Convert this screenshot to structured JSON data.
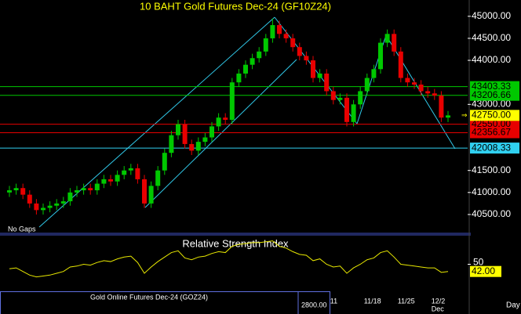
{
  "chart_data": [
    {
      "type": "candlestick",
      "title": "10 BAHT Gold Futures Dec-24 (GF10Z24)",
      "categories": [
        null,
        null,
        null,
        null,
        null,
        null,
        null,
        null,
        null,
        null,
        null,
        null,
        null,
        null,
        null,
        null,
        null,
        null,
        null,
        null,
        null,
        null,
        null,
        null,
        null,
        null,
        null,
        null,
        null,
        null,
        null,
        null,
        null,
        null,
        null,
        null,
        null,
        null,
        null,
        null,
        null,
        null,
        null,
        null,
        null,
        null,
        null,
        null,
        "11",
        null,
        null,
        null,
        null,
        "11/18",
        null,
        null,
        null,
        null,
        "11/25",
        null,
        null,
        null,
        null,
        "12/2",
        null,
        null
      ],
      "month_label": "Dec",
      "open": [
        41000,
        41050,
        41100,
        40950,
        40750,
        40600,
        40650,
        40700,
        40750,
        40800,
        41000,
        41050,
        41100,
        41050,
        41200,
        41300,
        41250,
        41400,
        41500,
        41550,
        41300,
        40750,
        41150,
        41500,
        41900,
        42300,
        42550,
        42100,
        41950,
        42150,
        42250,
        42500,
        42700,
        42650,
        43500,
        43700,
        43900,
        44050,
        44200,
        44500,
        44800,
        44600,
        44500,
        44300,
        44100,
        44000,
        43600,
        43700,
        43300,
        43100,
        43150,
        42600,
        43000,
        43300,
        43600,
        43800,
        44400,
        44600,
        44200,
        43600,
        43500,
        43450,
        43300,
        43250,
        43200,
        42700
      ],
      "high": [
        41150,
        41200,
        41200,
        41050,
        40850,
        40750,
        40800,
        40850,
        40900,
        41100,
        41150,
        41200,
        41200,
        41300,
        41400,
        41400,
        41500,
        41600,
        41650,
        41650,
        41400,
        41250,
        41600,
        42000,
        42400,
        42650,
        42650,
        42200,
        42250,
        42350,
        42600,
        42800,
        42800,
        43600,
        43800,
        44000,
        44150,
        44300,
        44600,
        44950,
        44900,
        44700,
        44600,
        44400,
        44200,
        44100,
        43800,
        43800,
        43400,
        43250,
        43250,
        43100,
        43400,
        43700,
        43900,
        44500,
        44700,
        44700,
        44300,
        43700,
        43600,
        43550,
        43400,
        43350,
        43300,
        42850
      ],
      "low": [
        40900,
        40950,
        40850,
        40650,
        40500,
        40500,
        40550,
        40600,
        40650,
        40700,
        40900,
        40950,
        40950,
        40950,
        41100,
        41150,
        41150,
        41300,
        41400,
        41200,
        40650,
        40650,
        41050,
        41400,
        41800,
        42200,
        42000,
        41850,
        41850,
        42050,
        42150,
        42400,
        42550,
        42550,
        43400,
        43600,
        43800,
        43950,
        44100,
        44400,
        44500,
        44400,
        44200,
        44000,
        43900,
        43500,
        43500,
        43200,
        43000,
        43000,
        42500,
        42500,
        42900,
        43200,
        43500,
        43700,
        44300,
        44100,
        43500,
        43400,
        43350,
        43200,
        43150,
        43100,
        42600,
        42600
      ],
      "close": [
        41050,
        41100,
        40950,
        40750,
        40600,
        40650,
        40700,
        40750,
        40800,
        41000,
        41050,
        41100,
        41050,
        41200,
        41300,
        41250,
        41400,
        41500,
        41550,
        41300,
        40750,
        41150,
        41500,
        41900,
        42300,
        42550,
        42100,
        41950,
        42150,
        42250,
        42500,
        42700,
        42650,
        43500,
        43700,
        43900,
        44050,
        44200,
        44500,
        44800,
        44600,
        44500,
        44300,
        44100,
        44000,
        43600,
        43700,
        43300,
        43100,
        43150,
        42600,
        43000,
        43300,
        43600,
        43800,
        44400,
        44600,
        44200,
        43600,
        43500,
        43450,
        43300,
        43250,
        43200,
        42700,
        42750
      ],
      "up_color": "#00c800",
      "down_color": "#e80000",
      "ylim": [
        40090,
        45370
      ],
      "yticks": [
        {
          "value": 45000,
          "label": "45000.00"
        },
        {
          "value": 44500,
          "label": "44500.00"
        },
        {
          "value": 44000,
          "label": "44000.00"
        },
        {
          "value": 43000,
          "label": "43000.00"
        },
        {
          "value": 41500,
          "label": "41500.00"
        },
        {
          "value": 41000,
          "label": "41000.00"
        },
        {
          "value": 40500,
          "label": "40500.00"
        }
      ],
      "levels": [
        {
          "value": 43403.33,
          "label": "43403.33",
          "color": "#00c800"
        },
        {
          "value": 43206.66,
          "label": "43206.66",
          "color": "#00c800"
        },
        {
          "value": 42550,
          "label": "42550.00",
          "color": "#e80000"
        },
        {
          "value": 42356.67,
          "label": "42356.67",
          "color": "#e80000"
        },
        {
          "value": 42008.33,
          "label": "42008.33",
          "color": "#30d0f0"
        }
      ],
      "current": {
        "value": 42750,
        "label": "42750.00",
        "color": "#ffff00"
      },
      "note": "No Gaps"
    },
    {
      "type": "line",
      "title": "Relative Strength Index",
      "color": "#e8e800",
      "values": [
        45,
        46,
        42,
        38,
        36,
        37,
        38,
        40,
        42,
        47,
        48,
        50,
        49,
        52,
        54,
        53,
        56,
        58,
        59,
        52,
        40,
        47,
        53,
        58,
        63,
        65,
        57,
        55,
        58,
        59,
        62,
        64,
        63,
        70,
        72,
        73,
        74,
        74,
        75,
        76,
        70,
        68,
        64,
        61,
        60,
        54,
        56,
        50,
        47,
        48,
        40,
        46,
        50,
        55,
        57,
        63,
        65,
        58,
        50,
        49,
        48,
        47,
        46,
        46,
        41,
        42
      ],
      "ylim": [
        20,
        80
      ],
      "yticks": [
        50
      ],
      "current": {
        "value": 42,
        "label": "42.00",
        "color": "#ffff00"
      }
    }
  ],
  "inset": {
    "title": "Gold Online Futures Dec-24 (GOZ24)",
    "tick": "2800.00"
  },
  "footer": {
    "period": "Day"
  }
}
